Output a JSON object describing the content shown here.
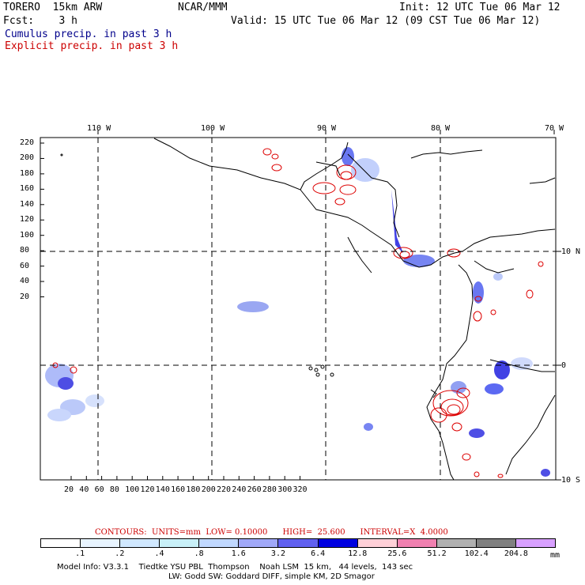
{
  "header": {
    "model_name": "TORERO  15km ARW",
    "org": "NCAR/MMM",
    "init": "Init: 12 UTC Tue 06 Mar 12",
    "fcst": "Fcst:    3 h",
    "valid": "Valid: 15 UTC Tue 06 Mar 12 (09 CST Tue 06 Mar 12)",
    "field1": "Cumulus precip. in past 3 h",
    "field2": "Explicit precip. in past 3 h",
    "field1_color": "#00008b",
    "field2_color": "#cc0000"
  },
  "map": {
    "lon_labels": [
      "110 W",
      "100 W",
      "90 W",
      "80 W",
      "70 W"
    ],
    "lat_labels": [
      "10 N",
      "0",
      "10 S"
    ],
    "y_ticks": [
      "220",
      "200",
      "180",
      "160",
      "140",
      "120",
      "100",
      "80",
      "60",
      "40",
      "20"
    ],
    "x_ticks": [
      "20",
      "40",
      "60",
      "80",
      "100",
      "120",
      "140",
      "160",
      "180",
      "200",
      "220",
      "240",
      "260",
      "280",
      "300",
      "320"
    ]
  },
  "legend": {
    "contours_label": "CONTOURS:  UNITS=mm  LOW= 0.10000      HIGH=  25.600      INTERVAL=X  4.0000",
    "values": [
      ".1",
      ".2",
      ".4",
      ".8",
      "1.6",
      "3.2",
      "6.4",
      "12.8",
      "25.6",
      "51.2",
      "102.4",
      "204.8"
    ],
    "unit": "mm",
    "colors": [
      "#ffffff",
      "#e8f4ff",
      "#d0e8ff",
      "#c8f0f8",
      "#c0d8ff",
      "#a0a8f8",
      "#6060f0",
      "#0000e0",
      "#ffd0d8",
      "#f080b0",
      "#b0b0b0",
      "#808080",
      "#d8a0ff"
    ]
  },
  "footer": {
    "line1": "Model Info: V3.3.1    Tiedtke YSU PBL  Thompson    Noah LSM  15 km,   44 levels,  143 sec",
    "line2": "LW: Godd SW: Goddard DIFF, simple KM, 2D Smagor"
  }
}
